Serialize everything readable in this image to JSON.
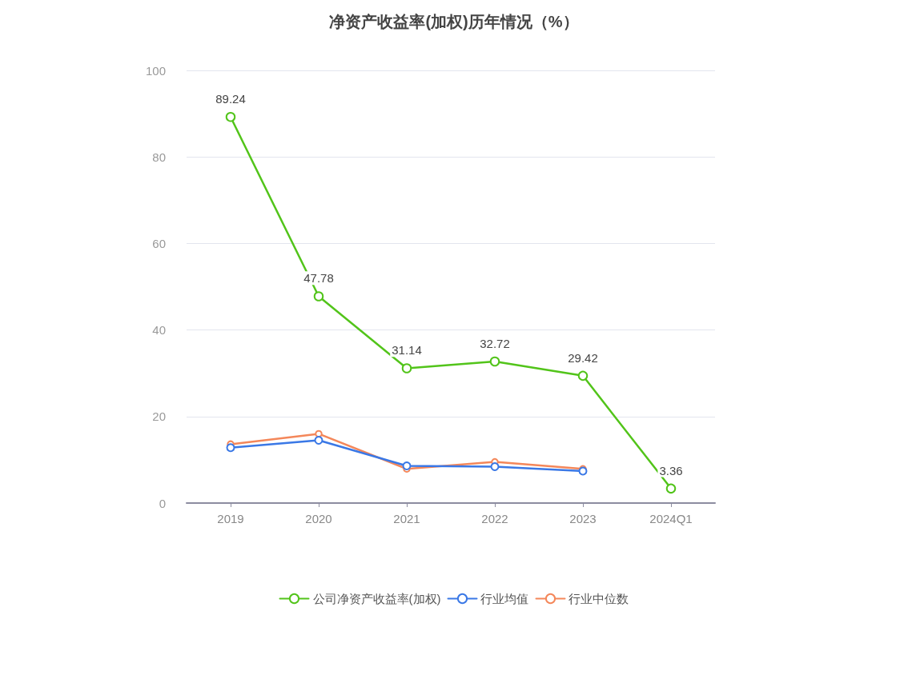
{
  "chart_data": {
    "type": "line",
    "title": "净资产收益率(加权)历年情况（%）",
    "categories": [
      "2019",
      "2020",
      "2021",
      "2022",
      "2023",
      "2024Q1"
    ],
    "series": [
      {
        "name": "公司净资产收益率(加权)",
        "color": "#52c41a",
        "values": [
          89.24,
          47.78,
          31.14,
          32.72,
          29.42,
          3.36
        ],
        "data_labels": true
      },
      {
        "name": "行业均值",
        "color": "#3a78e6",
        "values": [
          12.8,
          14.5,
          8.6,
          8.4,
          7.4,
          null
        ]
      },
      {
        "name": "行业中位数",
        "color": "#f4875a",
        "values": [
          13.6,
          16.0,
          7.9,
          9.5,
          7.9,
          null
        ]
      }
    ],
    "ylim": [
      0,
      100
    ],
    "yticks": [
      0,
      20,
      40,
      60,
      80,
      100
    ],
    "grid": "y",
    "legend": "bottom",
    "marker": "circle",
    "line_style": "solid"
  }
}
